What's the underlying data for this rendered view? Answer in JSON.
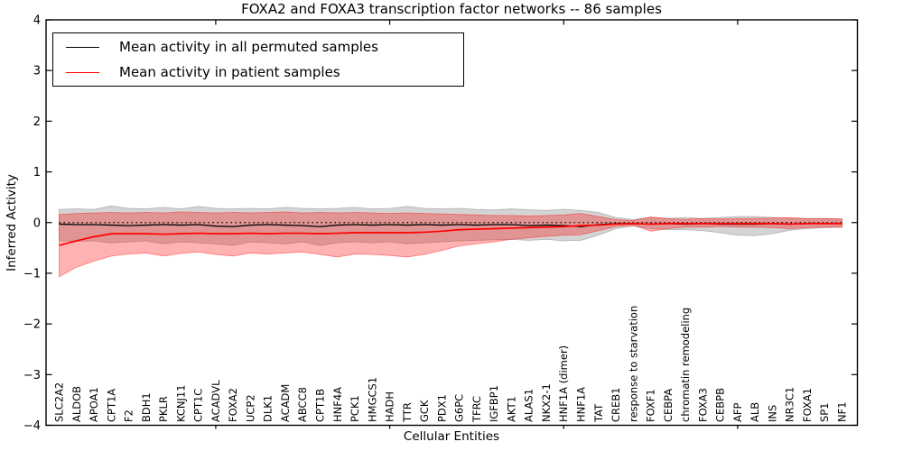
{
  "title": "FOXA2 and FOXA3 transcription factor networks -- 86 samples",
  "legend": {
    "items": [
      {
        "label": "Mean activity in all permuted samples",
        "color": "#000000"
      },
      {
        "label": "Mean activity in patient samples",
        "color": "#ff0000"
      }
    ]
  },
  "chart_data": {
    "type": "line",
    "title": "FOXA2 and FOXA3 transcription factor networks -- 86 samples",
    "xlabel": "Cellular Entities",
    "ylabel": "Inferred Activity",
    "ylim": [
      -4,
      4
    ],
    "grid": false,
    "legend_position": "upper left",
    "y_ticks": [
      4,
      3,
      2,
      1,
      0,
      -1,
      -2,
      -3,
      -4
    ],
    "y_tick_labels": [
      "4",
      "3",
      "2",
      "1",
      "0",
      "−1",
      "−2",
      "−3",
      "−4"
    ],
    "x_major_tick_indices": [
      9,
      19,
      29,
      39
    ],
    "categories": [
      "SLC2A2",
      "ALDOB",
      "APOA1",
      "CPT1A",
      "F2",
      "BDH1",
      "PKLR",
      "KCNJ11",
      "CPT1C",
      "ACADVL",
      "FOXA2",
      "UCP2",
      "DLK1",
      "ACADM",
      "ABCC8",
      "CPT1B",
      "HNF4A",
      "PCK1",
      "HMGCS1",
      "HADH",
      "TTR",
      "GCK",
      "PDX1",
      "G6PC",
      "TFRC",
      "IGFBP1",
      "AKT1",
      "ALAS1",
      "NKX2-1",
      "HNF1A (dimer)",
      "HNF1A",
      "TAT",
      "CREB1",
      "response to starvation",
      "FOXF1",
      "CEBPA",
      "chromatin remodeling",
      "FOXA3",
      "CEBPB",
      "AFP",
      "ALB",
      "INS",
      "NR3C1",
      "FOXA1",
      "SP1",
      "NF1"
    ],
    "series": [
      {
        "name": "Mean activity in all permuted samples",
        "color": "#000000",
        "values": [
          -0.03,
          -0.04,
          -0.04,
          -0.05,
          -0.06,
          -0.05,
          -0.04,
          -0.05,
          -0.04,
          -0.07,
          -0.08,
          -0.05,
          -0.04,
          -0.05,
          -0.06,
          -0.08,
          -0.05,
          -0.04,
          -0.05,
          -0.04,
          -0.05,
          -0.04,
          -0.05,
          -0.04,
          -0.05,
          -0.04,
          -0.04,
          -0.06,
          -0.05,
          -0.06,
          -0.08,
          -0.04,
          -0.02,
          -0.02,
          -0.03,
          -0.02,
          -0.03,
          -0.02,
          -0.03,
          -0.03,
          -0.03,
          -0.02,
          -0.03,
          -0.02,
          -0.02,
          -0.02
        ]
      },
      {
        "name": "Mean activity in patient samples",
        "color": "#ff0000",
        "values": [
          -0.45,
          -0.36,
          -0.28,
          -0.22,
          -0.22,
          -0.22,
          -0.23,
          -0.22,
          -0.21,
          -0.22,
          -0.22,
          -0.21,
          -0.22,
          -0.21,
          -0.21,
          -0.22,
          -0.21,
          -0.2,
          -0.2,
          -0.2,
          -0.2,
          -0.19,
          -0.17,
          -0.14,
          -0.13,
          -0.12,
          -0.11,
          -0.1,
          -0.09,
          -0.08,
          -0.06,
          -0.05,
          -0.03,
          -0.02,
          -0.03,
          -0.02,
          -0.02,
          -0.02,
          -0.02,
          -0.02,
          -0.02,
          -0.02,
          -0.03,
          -0.02,
          -0.02,
          -0.02
        ]
      }
    ],
    "bands": [
      {
        "name": "permuted-range",
        "color": "#787878",
        "opacity": 0.32,
        "upper": [
          0.26,
          0.27,
          0.26,
          0.33,
          0.28,
          0.27,
          0.3,
          0.27,
          0.32,
          0.28,
          0.27,
          0.28,
          0.27,
          0.3,
          0.28,
          0.27,
          0.28,
          0.3,
          0.27,
          0.28,
          0.32,
          0.28,
          0.27,
          0.28,
          0.26,
          0.25,
          0.27,
          0.25,
          0.24,
          0.26,
          0.24,
          0.2,
          0.1,
          0.06,
          0.1,
          0.08,
          0.1,
          0.08,
          0.1,
          0.12,
          0.12,
          0.1,
          0.08,
          0.08,
          0.08,
          0.07
        ],
        "lower": [
          -0.36,
          -0.37,
          -0.36,
          -0.4,
          -0.38,
          -0.36,
          -0.42,
          -0.38,
          -0.4,
          -0.42,
          -0.45,
          -0.38,
          -0.4,
          -0.42,
          -0.38,
          -0.45,
          -0.4,
          -0.38,
          -0.4,
          -0.38,
          -0.42,
          -0.4,
          -0.38,
          -0.36,
          -0.35,
          -0.34,
          -0.33,
          -0.35,
          -0.33,
          -0.36,
          -0.35,
          -0.25,
          -0.12,
          -0.07,
          -0.12,
          -0.14,
          -0.14,
          -0.16,
          -0.2,
          -0.25,
          -0.26,
          -0.22,
          -0.15,
          -0.12,
          -0.1,
          -0.09
        ]
      },
      {
        "name": "patient-range",
        "color": "#ff0000",
        "opacity": 0.3,
        "upper": [
          0.16,
          0.18,
          0.19,
          0.2,
          0.19,
          0.2,
          0.19,
          0.21,
          0.2,
          0.19,
          0.2,
          0.19,
          0.2,
          0.21,
          0.19,
          0.2,
          0.19,
          0.2,
          0.19,
          0.18,
          0.19,
          0.18,
          0.17,
          0.16,
          0.15,
          0.14,
          0.14,
          0.13,
          0.14,
          0.15,
          0.18,
          0.12,
          0.06,
          0.04,
          0.11,
          0.08,
          0.06,
          0.08,
          0.07,
          0.08,
          0.08,
          0.09,
          0.1,
          0.08,
          0.08,
          0.07
        ],
        "lower": [
          -1.07,
          -0.88,
          -0.76,
          -0.66,
          -0.62,
          -0.6,
          -0.66,
          -0.61,
          -0.58,
          -0.63,
          -0.66,
          -0.6,
          -0.62,
          -0.6,
          -0.58,
          -0.63,
          -0.68,
          -0.62,
          -0.63,
          -0.65,
          -0.68,
          -0.63,
          -0.55,
          -0.46,
          -0.42,
          -0.38,
          -0.33,
          -0.3,
          -0.27,
          -0.25,
          -0.24,
          -0.16,
          -0.08,
          -0.05,
          -0.17,
          -0.12,
          -0.09,
          -0.09,
          -0.08,
          -0.09,
          -0.09,
          -0.1,
          -0.12,
          -0.1,
          -0.09,
          -0.09
        ]
      }
    ],
    "zero_line": {
      "style": "dotted",
      "color": "#000000",
      "y": 0
    }
  }
}
